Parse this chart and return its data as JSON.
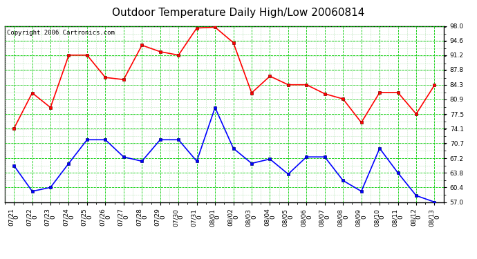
{
  "title": "Outdoor Temperature Daily High/Low 20060814",
  "copyright": "Copyright 2006 Cartronics.com",
  "x_labels": [
    "07/21",
    "07/22",
    "07/23",
    "07/24",
    "07/25",
    "07/26",
    "07/27",
    "07/28",
    "07/29",
    "07/30",
    "07/31",
    "08/01",
    "08/02",
    "08/03",
    "08/04",
    "08/05",
    "08/06",
    "08/07",
    "08/08",
    "08/09",
    "08/10",
    "08/11",
    "08/12",
    "08/13"
  ],
  "high_temps": [
    74.1,
    82.4,
    79.0,
    91.2,
    91.2,
    86.0,
    85.5,
    93.5,
    92.0,
    91.2,
    97.5,
    97.7,
    94.1,
    82.4,
    86.3,
    84.3,
    84.3,
    82.2,
    81.0,
    75.5,
    82.5,
    82.5,
    77.5,
    84.2
  ],
  "low_temps": [
    65.5,
    59.5,
    60.4,
    66.0,
    71.5,
    71.5,
    67.5,
    66.5,
    71.5,
    71.5,
    66.5,
    79.0,
    69.5,
    66.0,
    67.0,
    63.5,
    67.5,
    67.5,
    62.0,
    59.5,
    69.5,
    63.8,
    58.5,
    57.0
  ],
  "high_color": "#ff0000",
  "low_color": "#0000ff",
  "bg_color": "#ffffff",
  "plot_bg_color": "#ffffff",
  "grid_major_color": "#00cc00",
  "grid_minor_color": "#aaddaa",
  "yticks": [
    57.0,
    60.4,
    63.8,
    67.2,
    70.7,
    74.1,
    77.5,
    80.9,
    84.3,
    87.8,
    91.2,
    94.6,
    98.0
  ],
  "ymin": 57.0,
  "ymax": 98.0,
  "marker": "s",
  "markersize": 3,
  "linewidth": 1.2,
  "title_fontsize": 11,
  "copyright_fontsize": 6.5,
  "tick_fontsize": 6.5
}
